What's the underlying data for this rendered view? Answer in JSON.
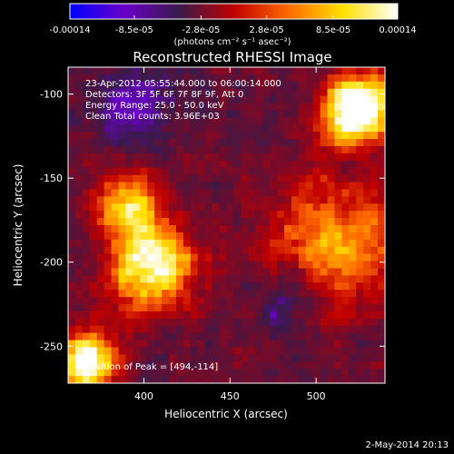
{
  "figure": {
    "timestamp": "2-May-2014 20:13"
  },
  "colorbar": {
    "tick_labels": [
      "-0.00014",
      "-8.5e-05",
      "-2.8e-05",
      "2.8e-05",
      "8.5e-05",
      "0.00014"
    ],
    "tick_values": [
      -0.00014,
      -8.5e-05,
      -2.8e-05,
      2.8e-05,
      8.5e-05,
      0.00014
    ],
    "range": [
      -0.00014,
      0.00014
    ],
    "unit_label": "(photons cm⁻² s⁻¹ asec⁻²)",
    "colors": [
      "#0000ff",
      "#6a00c8",
      "#3a1a4a",
      "#c00000",
      "#ff6a00",
      "#ffe000",
      "#ffffff"
    ]
  },
  "chart_data": {
    "type": "heatmap",
    "title": "Reconstructed RHESSI Image",
    "xlabel": "Heliocentric X (arcsec)",
    "ylabel": "Heliocentric Y (arcsec)",
    "x_range": [
      356,
      540
    ],
    "y_range": [
      -272,
      -84
    ],
    "x_ticks": [
      400,
      450,
      500
    ],
    "y_ticks": [
      -250,
      -200,
      -150,
      -100
    ],
    "value_range": [
      -0.00014,
      0.00014
    ],
    "annotations": [
      "23-Apr-2012 05:55:44.000 to 06:00:14.000",
      "Detectors: 3F 5F 6F 7F 8F 9F, Att 0",
      "Energy Range: 25.0 - 50.0 keV",
      "Clean     Total counts: 3.96E+03"
    ],
    "peak_label": "Position of Peak = [494,-114]",
    "peak_position": [
      494,
      -114
    ]
  }
}
